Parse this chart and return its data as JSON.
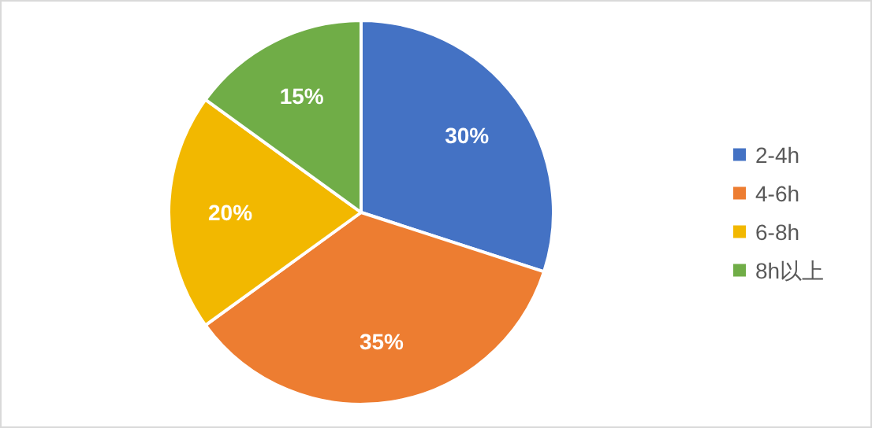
{
  "chart_data": {
    "type": "pie",
    "categories": [
      "2-4h",
      "4-6h",
      "6-8h",
      "8h以上"
    ],
    "values": [
      30,
      35,
      20,
      15
    ],
    "colors": [
      "#4472c4",
      "#ed7d31",
      "#f2b800",
      "#70ad47"
    ],
    "value_labels": [
      "30%",
      "35%",
      "20%",
      "15%"
    ],
    "legend": "right"
  }
}
